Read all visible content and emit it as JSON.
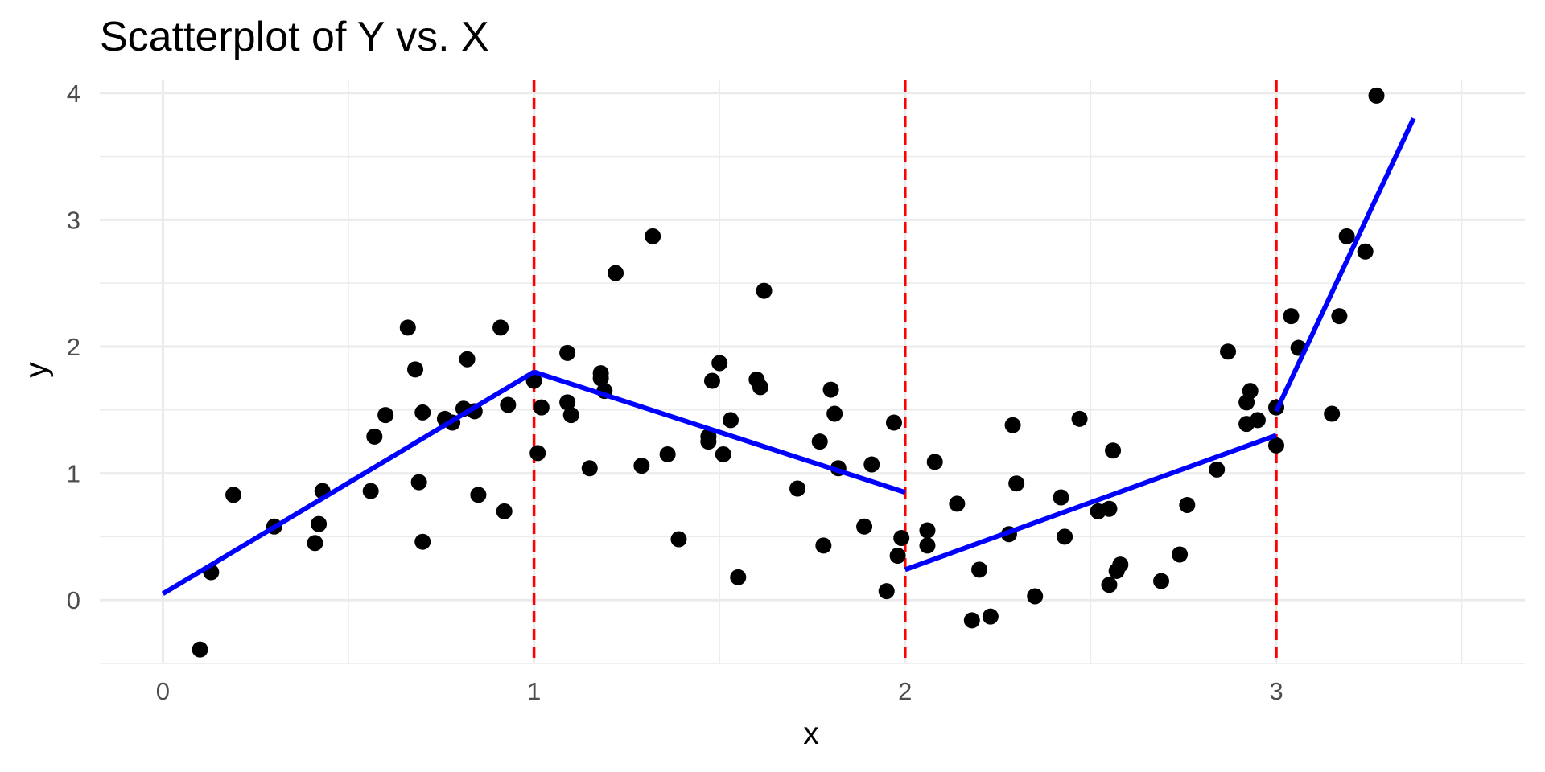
{
  "chart_data": {
    "type": "scatter",
    "title": "Scatterplot of Y vs. X",
    "xlabel": "x",
    "ylabel": "y",
    "xlim": [
      -0.17,
      3.67
    ],
    "ylim": [
      -0.5,
      4.1
    ],
    "x_ticks": [
      0,
      1,
      2,
      3
    ],
    "y_ticks": [
      0,
      1,
      2,
      3,
      4
    ],
    "x_minor_ticks": [
      0.5,
      1.5,
      2.5,
      3.5
    ],
    "y_minor_ticks": [
      -0.5,
      0.5,
      1.5,
      2.5,
      3.5
    ],
    "grid": true,
    "colors": {
      "points": "#000000",
      "fit_line": "#0000ff",
      "knot_line": "#ff0000",
      "grid": "#ebebeb"
    },
    "knots": [
      1,
      2,
      3
    ],
    "points": [
      [
        0.1,
        -0.39
      ],
      [
        0.13,
        0.22
      ],
      [
        0.19,
        0.83
      ],
      [
        0.3,
        0.58
      ],
      [
        0.41,
        0.45
      ],
      [
        0.42,
        0.6
      ],
      [
        0.43,
        0.86
      ],
      [
        0.56,
        0.86
      ],
      [
        0.57,
        1.29
      ],
      [
        0.6,
        1.46
      ],
      [
        0.66,
        2.15
      ],
      [
        0.68,
        1.82
      ],
      [
        0.69,
        0.93
      ],
      [
        0.7,
        0.46
      ],
      [
        0.7,
        1.48
      ],
      [
        0.76,
        1.43
      ],
      [
        0.78,
        1.4
      ],
      [
        0.81,
        1.51
      ],
      [
        0.82,
        1.9
      ],
      [
        0.84,
        1.49
      ],
      [
        0.85,
        0.83
      ],
      [
        0.91,
        2.15
      ],
      [
        0.92,
        0.7
      ],
      [
        0.93,
        1.54
      ],
      [
        1.0,
        1.73
      ],
      [
        1.01,
        1.16
      ],
      [
        1.02,
        1.52
      ],
      [
        1.09,
        1.95
      ],
      [
        1.09,
        1.56
      ],
      [
        1.1,
        1.46
      ],
      [
        1.15,
        1.04
      ],
      [
        1.18,
        1.79
      ],
      [
        1.18,
        1.75
      ],
      [
        1.19,
        1.65
      ],
      [
        1.22,
        2.58
      ],
      [
        1.29,
        1.06
      ],
      [
        1.32,
        2.87
      ],
      [
        1.36,
        1.15
      ],
      [
        1.39,
        0.48
      ],
      [
        1.47,
        1.29
      ],
      [
        1.47,
        1.25
      ],
      [
        1.48,
        1.73
      ],
      [
        1.5,
        1.87
      ],
      [
        1.51,
        1.15
      ],
      [
        1.53,
        1.42
      ],
      [
        1.55,
        0.18
      ],
      [
        1.6,
        1.74
      ],
      [
        1.61,
        1.68
      ],
      [
        1.62,
        2.44
      ],
      [
        1.71,
        0.88
      ],
      [
        1.77,
        1.25
      ],
      [
        1.78,
        0.43
      ],
      [
        1.8,
        1.66
      ],
      [
        1.81,
        1.47
      ],
      [
        1.82,
        1.04
      ],
      [
        1.89,
        0.58
      ],
      [
        1.91,
        1.07
      ],
      [
        1.95,
        0.07
      ],
      [
        1.97,
        1.4
      ],
      [
        1.98,
        0.35
      ],
      [
        1.99,
        0.49
      ],
      [
        2.06,
        0.55
      ],
      [
        2.06,
        0.43
      ],
      [
        2.08,
        1.09
      ],
      [
        2.14,
        0.76
      ],
      [
        2.18,
        -0.16
      ],
      [
        2.2,
        0.24
      ],
      [
        2.23,
        -0.13
      ],
      [
        2.28,
        0.52
      ],
      [
        2.29,
        1.38
      ],
      [
        2.3,
        0.92
      ],
      [
        2.35,
        0.03
      ],
      [
        2.42,
        0.81
      ],
      [
        2.43,
        0.5
      ],
      [
        2.47,
        1.43
      ],
      [
        2.52,
        0.7
      ],
      [
        2.55,
        0.72
      ],
      [
        2.55,
        0.12
      ],
      [
        2.56,
        1.18
      ],
      [
        2.57,
        0.23
      ],
      [
        2.58,
        0.28
      ],
      [
        2.69,
        0.15
      ],
      [
        2.74,
        0.36
      ],
      [
        2.76,
        0.75
      ],
      [
        2.84,
        1.03
      ],
      [
        2.87,
        1.96
      ],
      [
        2.92,
        1.56
      ],
      [
        2.92,
        1.39
      ],
      [
        2.93,
        1.65
      ],
      [
        2.95,
        1.42
      ],
      [
        3.0,
        1.22
      ],
      [
        3.0,
        1.52
      ],
      [
        3.04,
        2.24
      ],
      [
        3.06,
        1.99
      ],
      [
        3.15,
        1.47
      ],
      [
        3.17,
        2.24
      ],
      [
        3.19,
        2.87
      ],
      [
        3.24,
        2.75
      ],
      [
        3.27,
        3.98
      ]
    ],
    "fit_segments": [
      {
        "x": [
          0.0,
          1.0
        ],
        "y": [
          0.05,
          1.8
        ]
      },
      {
        "x": [
          1.0,
          2.0
        ],
        "y": [
          1.8,
          0.85
        ]
      },
      {
        "x": [
          2.0,
          3.0
        ],
        "y": [
          0.24,
          1.3
        ]
      },
      {
        "x": [
          3.0,
          3.37
        ],
        "y": [
          1.49,
          3.8
        ]
      }
    ]
  }
}
